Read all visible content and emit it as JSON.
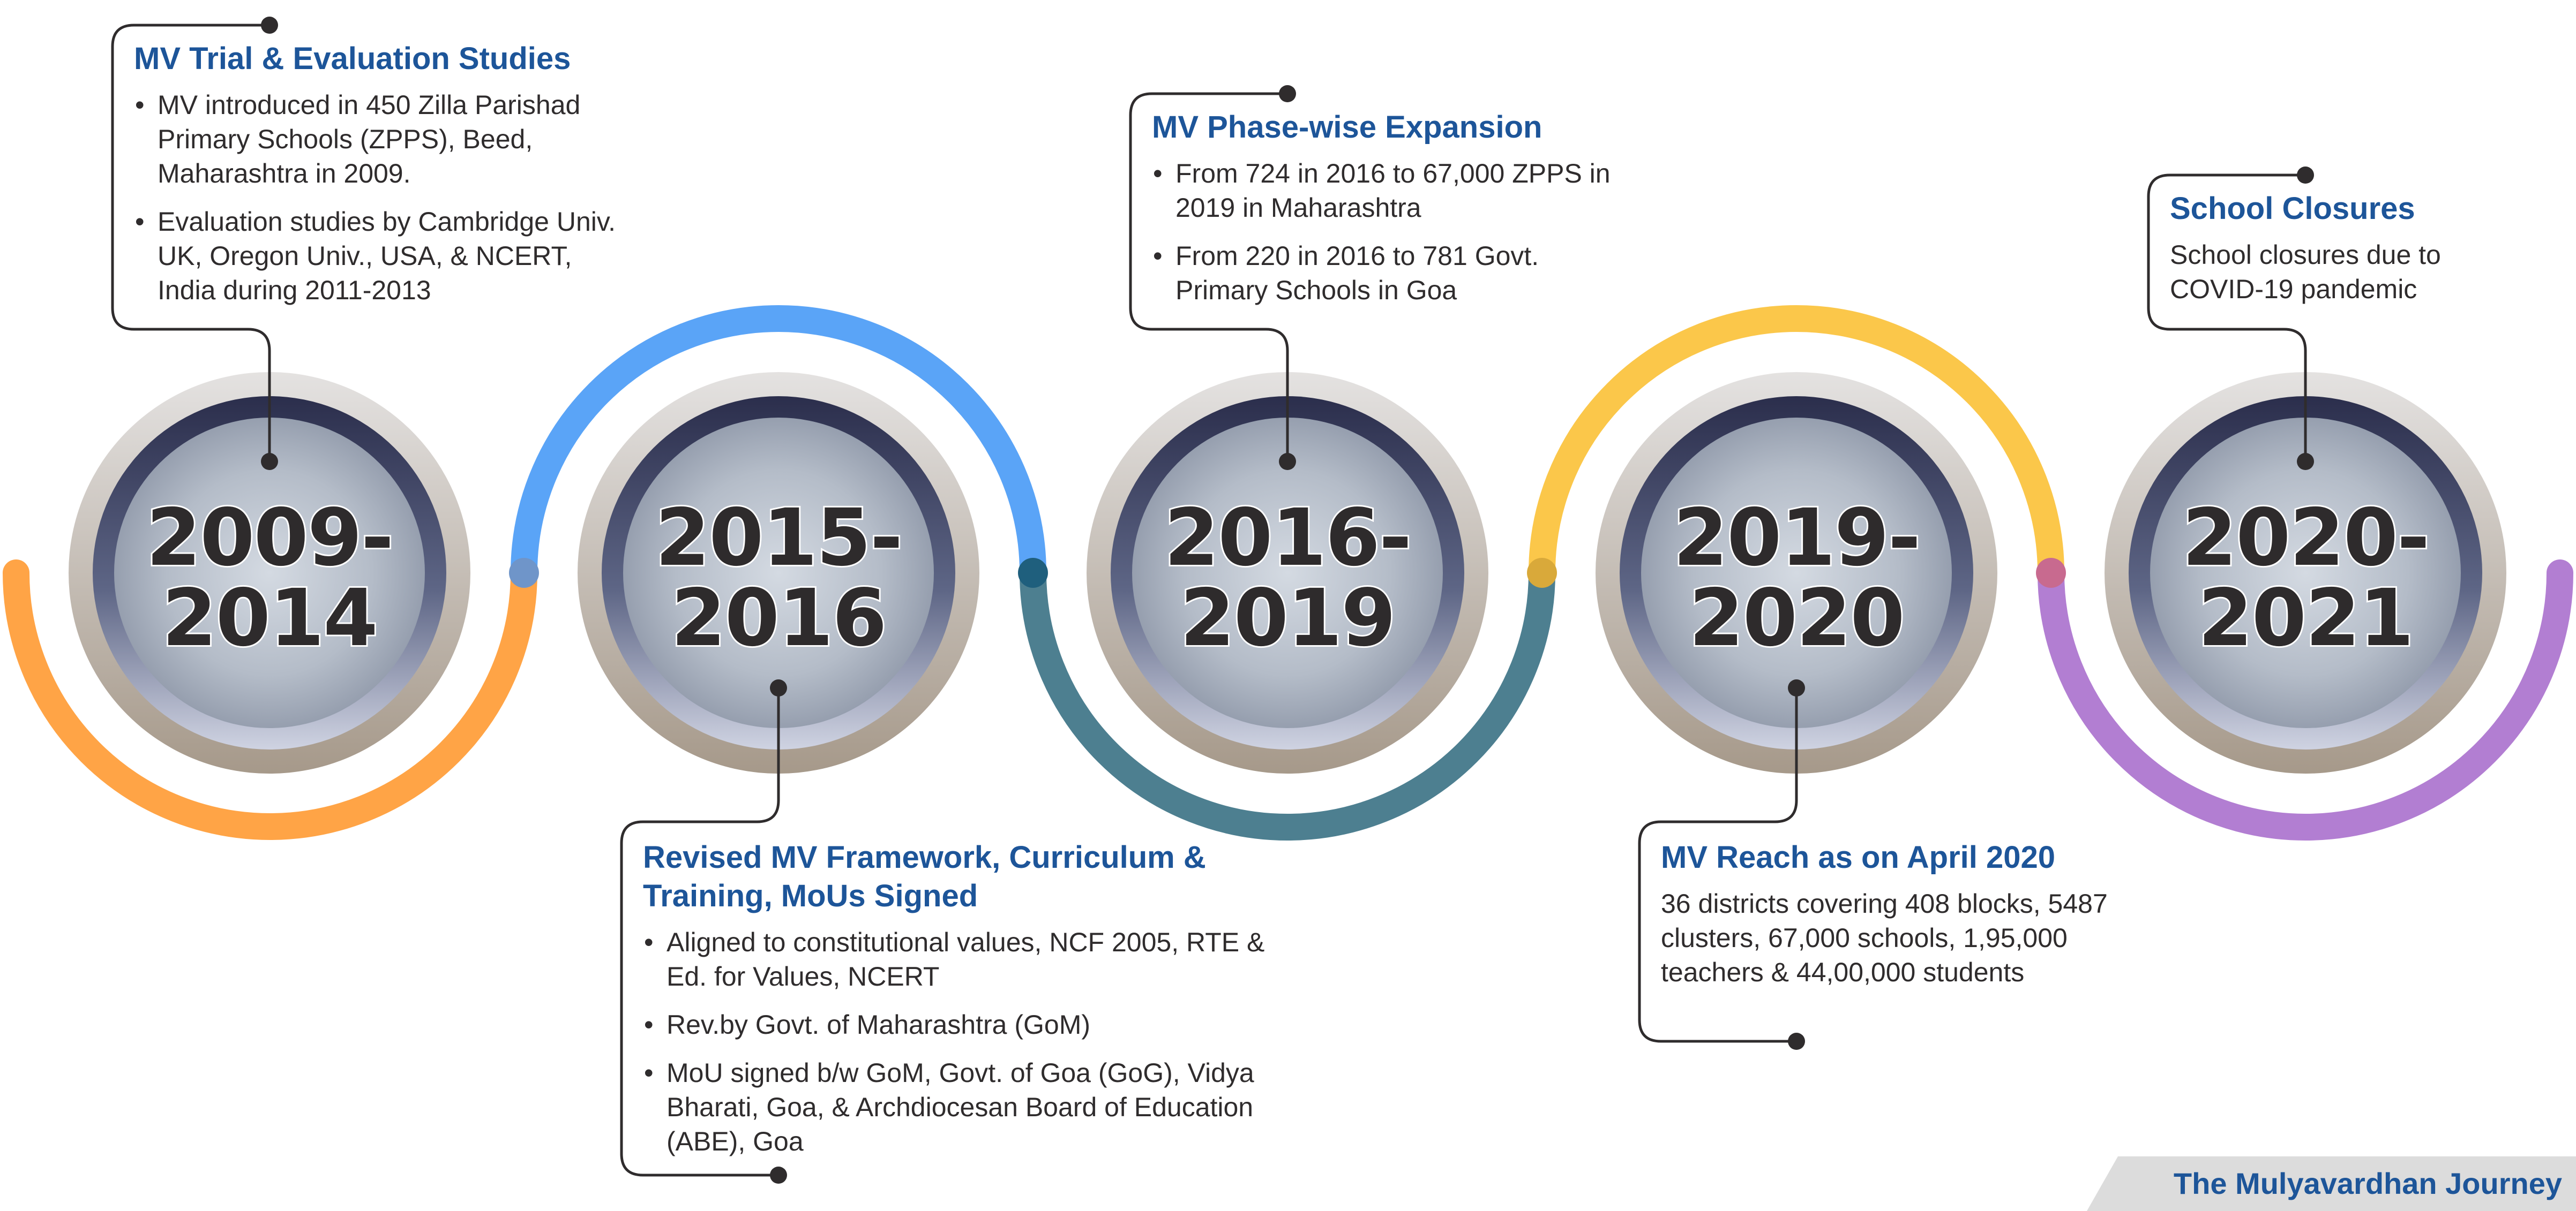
{
  "colors": {
    "segment_orange": "#ffa446",
    "segment_blue": "#5aa4f7",
    "segment_teal": "#4d7f90",
    "segment_yellow": "#fbc74a",
    "segment_purple": "#b27ed2",
    "title_blue": "#1d5599",
    "text_dark": "#2f2c2d"
  },
  "milestones": [
    {
      "year_line1": "2009-",
      "year_line2": "2014",
      "title": "MV Trial & Evaluation Studies",
      "bullets": [
        "MV introduced in 450 Zilla Parishad Primary Schools (ZPPS), Beed, Maharashtra in 2009.",
        "Evaluation studies by Cambridge Univ. UK, Oregon Univ., USA, & NCERT, India during 2011-2013"
      ]
    },
    {
      "year_line1": "2015-",
      "year_line2": "2016",
      "title": "Revised MV Framework, Curriculum & Training, MoUs  Signed",
      "bullets": [
        "Aligned to constitutional values, NCF 2005, RTE & Ed. for Values, NCERT",
        "Rev.by Govt. of Maharashtra (GoM)",
        "MoU signed b/w GoM, Govt. of Goa (GoG), Vidya Bharati, Goa, & Archdiocesan Board of Education (ABE), Goa"
      ]
    },
    {
      "year_line1": "2016-",
      "year_line2": "2019",
      "title": "MV Phase-wise Expansion",
      "bullets": [
        "From 724 in 2016 to 67,000 ZPPS in 2019 in Maharashtra",
        "From 220 in 2016 to 781 Govt. Primary Schools in Goa"
      ]
    },
    {
      "year_line1": "2019-",
      "year_line2": "2020",
      "title": "MV Reach as on April 2020",
      "text": "36 districts covering 408 blocks, 5487 clusters, 67,000 schools, 1,95,000 teachers & 44,00,000 students"
    },
    {
      "year_line1": "2020-",
      "year_line2": "2021",
      "title": "School Closures",
      "text": "School closures due to COVID-19 pandemic"
    }
  ],
  "footer": {
    "title": "The Mulyavardhan Journey"
  }
}
